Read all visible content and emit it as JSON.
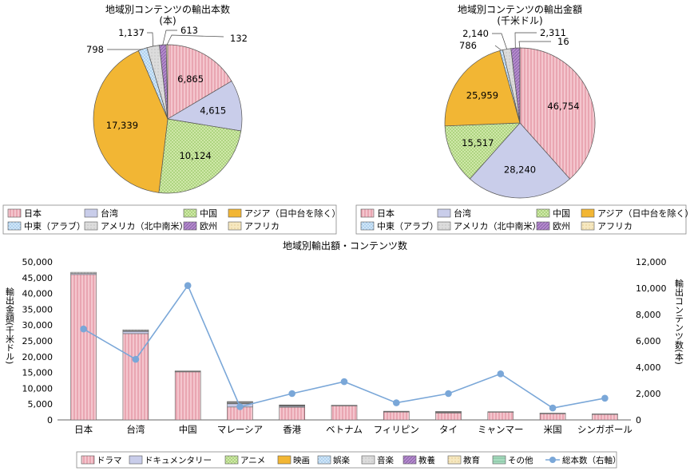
{
  "colors": {
    "japan": "#f4c6ce",
    "taiwan": "#c9cdea",
    "china": "#cfe8a8",
    "asia": "#f2b634",
    "middle_east": "#cfe6f8",
    "americas": "#dcdcdc",
    "europe": "#b48ccc",
    "africa": "#f6e8c0",
    "drama": "#f4c6ce",
    "documentary": "#c9cdea",
    "anime": "#cfe8a8",
    "film": "#f2b634",
    "entertainment": "#cfe6f8",
    "music": "#dcdcdc",
    "culture": "#b48ccc",
    "education": "#f6e8c0",
    "other": "#a8dcc0",
    "line": "#7aa7d8"
  },
  "chart_data": [
    {
      "type": "pie",
      "title": "地域別コンテンツの輸出本数",
      "subtitle": "(本)",
      "labels": [
        "日本",
        "台湾",
        "中国",
        "アジア（日中台を除く）",
        "中東（アラブ）",
        "アメリカ（北中南米）",
        "欧州",
        "アフリカ"
      ],
      "values": [
        6865,
        4615,
        10124,
        17339,
        798,
        1137,
        613,
        132
      ],
      "value_labels": [
        "6,865",
        "4,615",
        "10,124",
        "17,339",
        "798",
        "1,137",
        "613",
        "132"
      ]
    },
    {
      "type": "pie",
      "title": "地域別コンテンツの輸出金額",
      "subtitle": "(千米ドル)",
      "labels": [
        "日本",
        "台湾",
        "中国",
        "アジア（日中台を除く）",
        "中東（アラブ）",
        "アメリカ（北中南米）",
        "欧州",
        "アフリカ"
      ],
      "values": [
        46754,
        28240,
        15517,
        25959,
        786,
        2140,
        2311,
        16
      ],
      "value_labels": [
        "46,754",
        "28,240",
        "15,517",
        "25,959",
        "786",
        "2,140",
        "2,311",
        "16"
      ]
    },
    {
      "type": "bar",
      "title": "地域別輸出額・コンテンツ数",
      "categories": [
        "日本",
        "台湾",
        "中国",
        "マレーシア",
        "香港",
        "ベトナム",
        "フィリピン",
        "タイ",
        "ミャンマー",
        "米国",
        "シンガポール"
      ],
      "ylabel": "輸出金額(千米ドル)",
      "y2label": "輸出コンテンツ数(本)",
      "ylim": [
        0,
        50000
      ],
      "y2lim": [
        0,
        12000
      ],
      "yticks": [
        "0",
        "5,000",
        "10,000",
        "15,000",
        "20,000",
        "25,000",
        "30,000",
        "35,000",
        "40,000",
        "45,000",
        "50,000"
      ],
      "y2ticks": [
        "0",
        "2,000",
        "4,000",
        "6,000",
        "8,000",
        "10,000",
        "12,000"
      ],
      "series": [
        {
          "name": "ドラマ",
          "values": [
            46000,
            27300,
            15200,
            4100,
            4000,
            4500,
            2500,
            2200,
            2500,
            2000,
            1800
          ]
        },
        {
          "name": "ドキュメンタリー",
          "values": [
            300,
            700,
            100,
            1000,
            300,
            50,
            100,
            200,
            50,
            50,
            50
          ]
        },
        {
          "name": "アニメ",
          "values": [
            0,
            100,
            0,
            200,
            100,
            0,
            50,
            100,
            0,
            0,
            0
          ]
        },
        {
          "name": "映画",
          "values": [
            0,
            0,
            0,
            0,
            0,
            0,
            0,
            0,
            0,
            0,
            0
          ]
        },
        {
          "name": "娯楽",
          "values": [
            0,
            100,
            0,
            100,
            100,
            0,
            0,
            0,
            0,
            0,
            0
          ]
        },
        {
          "name": "音楽",
          "values": [
            400,
            300,
            200,
            300,
            200,
            100,
            100,
            200,
            50,
            100,
            50
          ]
        },
        {
          "name": "教養",
          "values": [
            0,
            0,
            0,
            100,
            50,
            0,
            0,
            0,
            0,
            0,
            0
          ]
        },
        {
          "name": "教育",
          "values": [
            0,
            0,
            0,
            0,
            0,
            0,
            0,
            0,
            0,
            0,
            0
          ]
        },
        {
          "name": "その他",
          "values": [
            0,
            0,
            0,
            0,
            0,
            0,
            0,
            0,
            0,
            0,
            0
          ]
        }
      ],
      "line": {
        "name": "総本数（右軸）",
        "axis": "right",
        "values": [
          6900,
          4600,
          10200,
          1000,
          2000,
          2900,
          1300,
          2000,
          3500,
          900,
          1650
        ]
      }
    }
  ]
}
